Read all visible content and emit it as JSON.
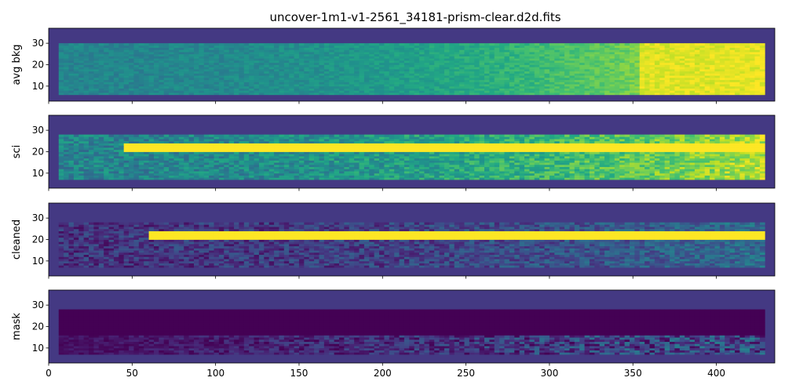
{
  "figure": {
    "title": "uncover-1m1-v1-2561_34181-prism-clear.d2d.fits"
  },
  "chart_data": {
    "type": "heatmap",
    "title": "uncover-1m1-v1-2561_34181-prism-clear.d2d.fits",
    "colormap": "viridis",
    "background_color": "#443983",
    "xlim": [
      0,
      435
    ],
    "ylim": [
      3,
      37
    ],
    "xticks": [
      0,
      50,
      100,
      150,
      200,
      250,
      300,
      350,
      400
    ],
    "yticks": [
      10,
      20,
      30
    ],
    "shared_x_axis": true,
    "panels": [
      {
        "name": "avg-bkg",
        "ylabel": "avg bkg",
        "data_extent": {
          "x": [
            6,
            428
          ],
          "y": [
            6,
            30
          ]
        },
        "trace": {
          "center_y": null,
          "half_width": 0
        },
        "description_values": {
          "start_level": 0.45,
          "end_level": 0.98
        }
      },
      {
        "name": "sci",
        "ylabel": "sci",
        "data_extent": {
          "x": [
            6,
            428
          ],
          "y": [
            7,
            28
          ]
        },
        "trace": {
          "center_y": 22,
          "half_width": 2,
          "start_x": 45
        },
        "description_values": {
          "start_level": 0.45,
          "end_level": 0.9
        }
      },
      {
        "name": "cleaned",
        "ylabel": "cleaned",
        "data_extent": {
          "x": [
            6,
            428
          ],
          "y": [
            7,
            28
          ]
        },
        "trace": {
          "center_y": 22,
          "half_width": 2,
          "start_x": 60
        },
        "description_values": {
          "start_level": 0.15,
          "end_level": 0.35
        }
      },
      {
        "name": "mask",
        "ylabel": "mask",
        "data_extent": {
          "x": [
            6,
            428
          ],
          "y": [
            7,
            28
          ]
        },
        "trace": {
          "center_y": 22,
          "half_width": 5,
          "start_x": 6
        },
        "description_values": {
          "start_level": 0.05,
          "end_level": 0.3
        }
      }
    ]
  }
}
